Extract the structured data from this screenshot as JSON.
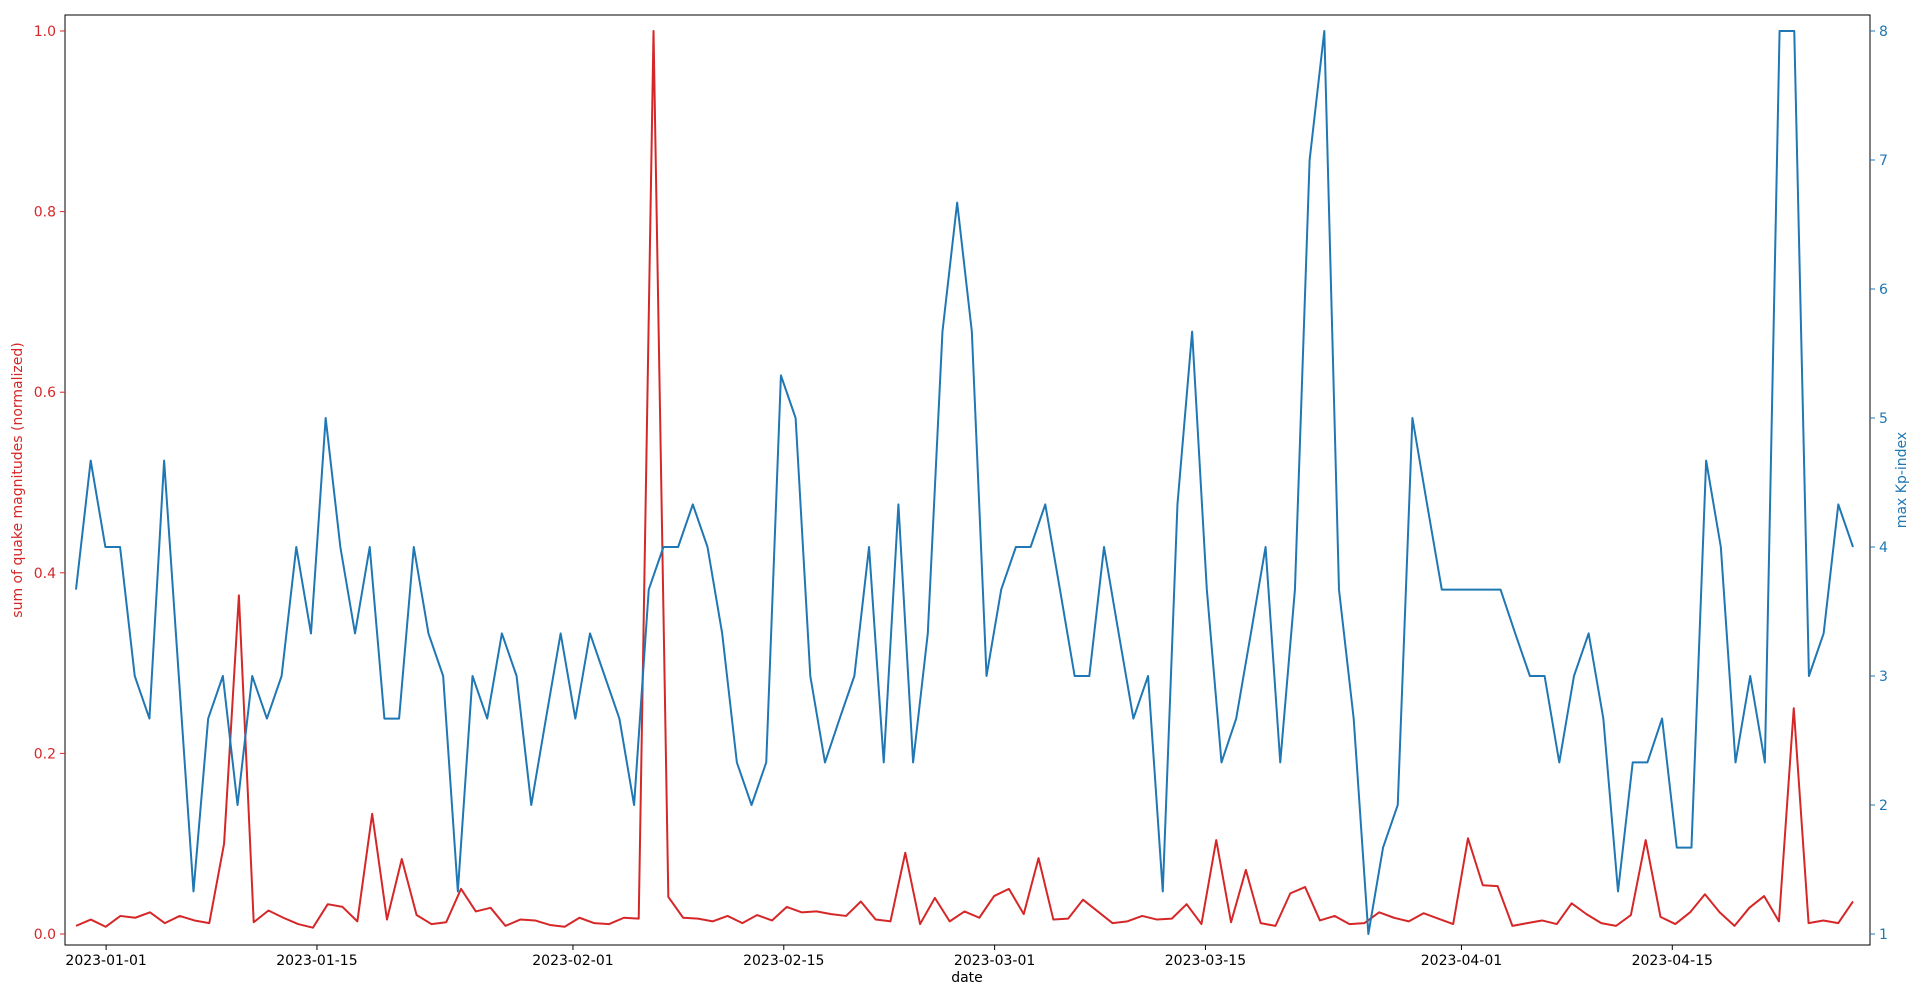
{
  "chart_data": {
    "type": "line",
    "xlabel": "date",
    "x_tick_labels": [
      "2023-01-01",
      "2023-01-15",
      "2023-02-01",
      "2023-02-15",
      "2023-03-01",
      "2023-03-15",
      "2023-04-01",
      "2023-04-15"
    ],
    "y_left": {
      "label": "sum of quake magnitudes (normalized)",
      "ylim": [
        0,
        1.0
      ],
      "ticks": [
        "0.0",
        "0.2",
        "0.4",
        "0.6",
        "0.8",
        "1.0"
      ],
      "color": "#d62728"
    },
    "y_right": {
      "label": "max Kp-index",
      "ylim": [
        1,
        8
      ],
      "ticks": [
        "1",
        "2",
        "3",
        "4",
        "5",
        "6",
        "7",
        "8"
      ],
      "color": "#1f77b4"
    },
    "grid": false,
    "x_range": [
      "2022-12-30",
      "2023-04-27"
    ],
    "series": [
      {
        "axis": "left",
        "color": "#d62728",
        "values": [
          0.009,
          0.016,
          0.008,
          0.02,
          0.018,
          0.024,
          0.012,
          0.02,
          0.015,
          0.012,
          0.1,
          0.375,
          0.013,
          0.026,
          0.018,
          0.011,
          0.007,
          0.033,
          0.03,
          0.014,
          0.133,
          0.016,
          0.083,
          0.021,
          0.011,
          0.013,
          0.05,
          0.025,
          0.029,
          0.009,
          0.016,
          0.015,
          0.01,
          0.008,
          0.018,
          0.012,
          0.011,
          0.018,
          0.017,
          1.0,
          0.041,
          0.018,
          0.017,
          0.014,
          0.02,
          0.012,
          0.021,
          0.015,
          0.03,
          0.024,
          0.025,
          0.022,
          0.02,
          0.036,
          0.016,
          0.014,
          0.09,
          0.011,
          0.04,
          0.014,
          0.025,
          0.018,
          0.042,
          0.05,
          0.022,
          0.084,
          0.016,
          0.017,
          0.038,
          0.025,
          0.012,
          0.014,
          0.02,
          0.016,
          0.017,
          0.033,
          0.011,
          0.104,
          0.013,
          0.071,
          0.012,
          0.009,
          0.045,
          0.052,
          0.015,
          0.02,
          0.011,
          0.012,
          0.024,
          0.018,
          0.014,
          0.023,
          0.017,
          0.011,
          0.106,
          0.054,
          0.053,
          0.009,
          0.012,
          0.015,
          0.011,
          0.034,
          0.022,
          0.012,
          0.009,
          0.021,
          0.104,
          0.019,
          0.011,
          0.024,
          0.044,
          0.024,
          0.009,
          0.029,
          0.042,
          0.014,
          0.25,
          0.012,
          0.015,
          0.012,
          0.036
        ]
      },
      {
        "axis": "right",
        "color": "#1f77b4",
        "values": [
          3.67,
          4.67,
          4.0,
          4.0,
          3.0,
          2.67,
          4.67,
          3.0,
          1.33,
          2.67,
          3.0,
          2.0,
          3.0,
          2.67,
          3.0,
          4.0,
          3.33,
          5.0,
          4.0,
          3.33,
          4.0,
          2.67,
          2.67,
          4.0,
          3.33,
          3.0,
          1.33,
          3.0,
          2.67,
          3.33,
          3.0,
          2.0,
          2.67,
          3.33,
          2.67,
          3.33,
          3.0,
          2.67,
          2.0,
          3.67,
          4.0,
          4.0,
          4.33,
          4.0,
          3.33,
          2.33,
          2.0,
          2.33,
          5.33,
          5.0,
          3.0,
          2.33,
          2.67,
          3.0,
          4.0,
          2.33,
          4.33,
          2.33,
          3.33,
          5.67,
          6.67,
          5.67,
          3.0,
          3.67,
          4.0,
          4.0,
          4.33,
          3.67,
          3.0,
          3.0,
          4.0,
          3.33,
          2.67,
          3.0,
          1.33,
          4.33,
          5.67,
          3.67,
          2.33,
          2.67,
          3.33,
          4.0,
          2.33,
          3.67,
          7.0,
          8.0,
          3.67,
          2.67,
          1.0,
          1.67,
          2.0,
          5.0,
          4.33,
          3.67,
          3.67,
          3.67,
          3.67,
          3.67,
          3.33,
          3.0,
          3.0,
          2.33,
          3.0,
          3.33,
          2.67,
          1.33,
          2.33,
          2.33,
          2.67,
          1.67,
          1.67,
          4.67,
          4.0,
          2.33,
          3.0,
          2.33,
          8.0,
          8.0,
          3.0,
          3.33,
          4.33,
          4.0
        ]
      }
    ]
  }
}
